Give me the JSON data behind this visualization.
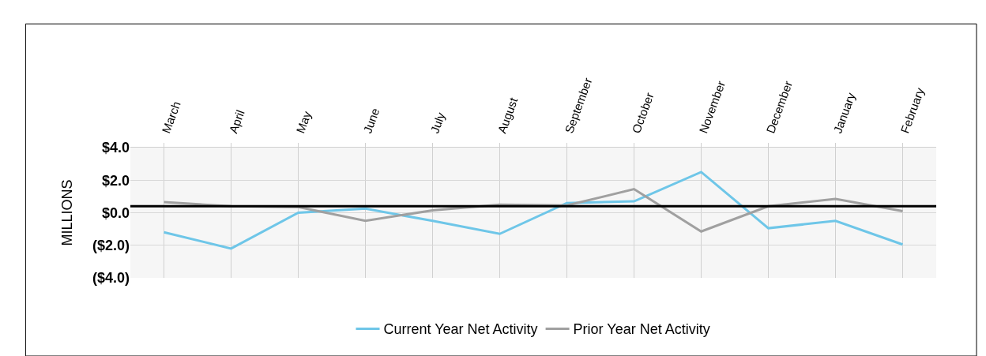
{
  "chart_data": {
    "type": "line",
    "ylabel": "MILLIONS",
    "categories": [
      "March",
      "April",
      "May",
      "June",
      "July",
      "August",
      "September",
      "October",
      "November",
      "December",
      "January",
      "February"
    ],
    "series": [
      {
        "name": "Current Year Net Activity",
        "color": "#6ec6e8",
        "values": [
          -1.2,
          -2.2,
          0.0,
          0.25,
          -0.5,
          -1.3,
          0.6,
          0.7,
          2.5,
          -0.95,
          -0.5,
          -1.95
        ]
      },
      {
        "name": "Prior Year Net Activity",
        "color": "#a0a0a0",
        "values": [
          0.65,
          0.4,
          0.35,
          -0.5,
          0.15,
          0.5,
          0.45,
          1.45,
          -1.15,
          0.4,
          0.85,
          0.1
        ]
      }
    ],
    "ylim": [
      -4,
      4
    ],
    "yticks": [
      {
        "value": 4,
        "label": "$4.0"
      },
      {
        "value": 2,
        "label": "$2.0"
      },
      {
        "value": 0,
        "label": "$0.0"
      },
      {
        "value": -2,
        "label": "($2.0)"
      },
      {
        "value": -4,
        "label": "($4.0)"
      }
    ],
    "ref_lines": [
      {
        "axis": "y",
        "value": 0.4,
        "color": "#000000"
      }
    ],
    "grid": true,
    "legend": "bottom",
    "marker": "none",
    "line_style": "solid"
  }
}
